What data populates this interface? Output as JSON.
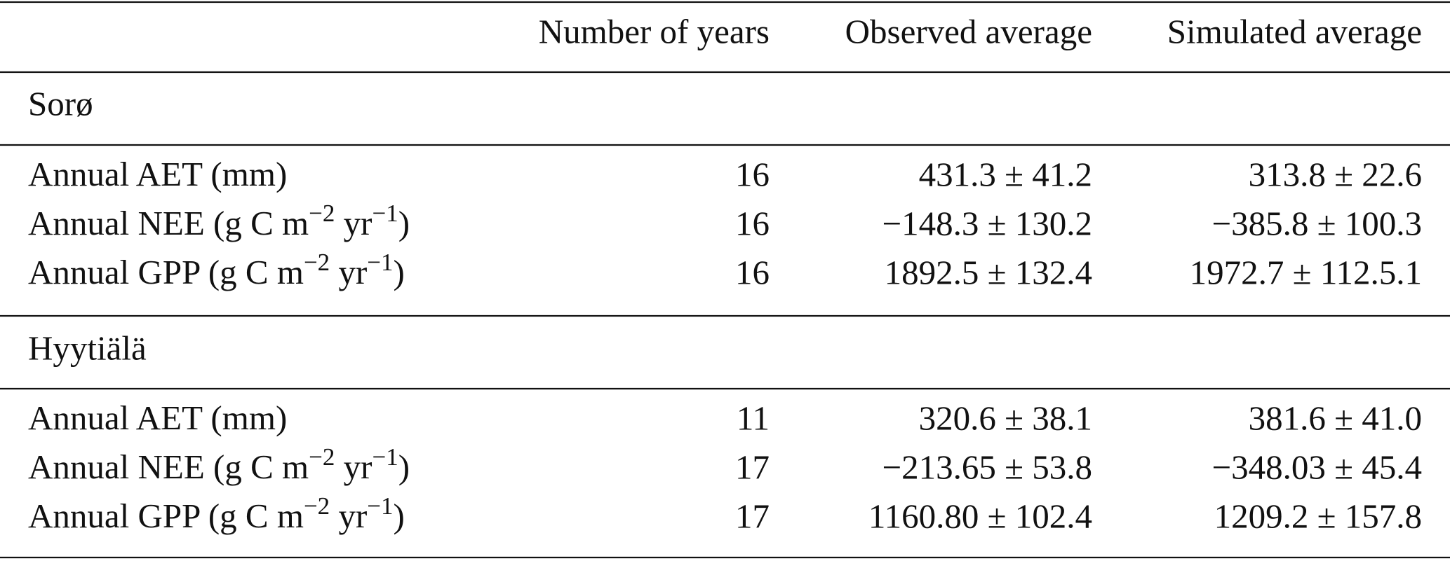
{
  "table": {
    "columns": [
      "Number of years",
      "Observed average",
      "Simulated average"
    ],
    "groups": [
      {
        "name": "Sorø",
        "rows": [
          {
            "label": [
              "Annual AET (mm)"
            ],
            "years": 16,
            "observed": "431.3 ± 41.2",
            "simulated": "313.8 ± 22.6"
          },
          {
            "label": [
              "Annual NEE (g C m",
              "−2",
              " yr",
              "−1",
              ")"
            ],
            "years": 16,
            "observed": "−148.3 ± 130.2",
            "simulated": "−385.8 ± 100.3"
          },
          {
            "label": [
              "Annual GPP (g C m",
              "−2",
              " yr",
              "−1",
              ")"
            ],
            "years": 16,
            "observed": "1892.5 ± 132.4",
            "simulated": "1972.7 ± 112.5.1"
          }
        ]
      },
      {
        "name": "Hyytiälä",
        "rows": [
          {
            "label": [
              "Annual AET (mm)"
            ],
            "years": 11,
            "observed": "320.6 ± 38.1",
            "simulated": "381.6 ± 41.0"
          },
          {
            "label": [
              "Annual NEE (g C m",
              "−2",
              " yr",
              "−1",
              ")"
            ],
            "years": 17,
            "observed": "−213.65 ± 53.8",
            "simulated": "−348.03 ± 45.4"
          },
          {
            "label": [
              "Annual GPP (g C m",
              "−2",
              " yr",
              "−1",
              ")"
            ],
            "years": 17,
            "observed": "1160.80 ± 102.4",
            "simulated": "1209.2 ± 157.8"
          }
        ]
      }
    ]
  }
}
